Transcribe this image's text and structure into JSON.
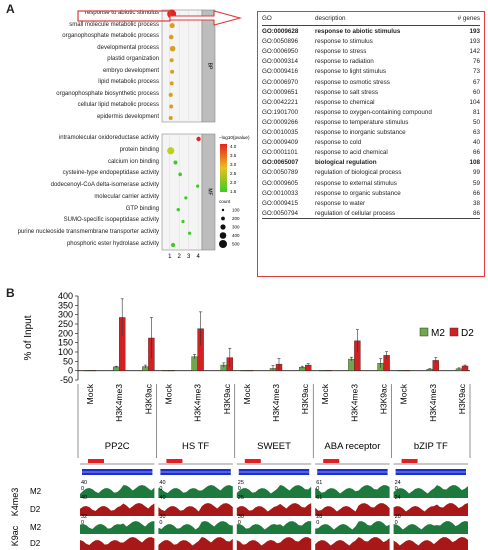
{
  "panel_a_label": "A",
  "panel_b_label": "B",
  "bubble": {
    "bp_terms": [
      "response to abiotic stimulus",
      "small molecule metabolic process",
      "organophosphate metabolic process",
      "developmental process",
      "plastid organization",
      "embryo development",
      "lipid metabolic process",
      "organophosphate biosynthetic process",
      "cellular lipid metabolic process",
      "epidermis development"
    ],
    "mf_terms": [
      "intramolecular oxidoreductase activity",
      "protein binding",
      "calcium ion binding",
      "cysteine-type endopeptidase activity",
      "dodecenoyl-CoA delta-isomerase activity",
      "molecular carrier activity",
      "GTP binding",
      "SUMO-specific isopeptidase activity",
      "purine nucleoside transmembrane transporter activity",
      "phosphoric ester hydrolase activity"
    ],
    "bp_tag": "BP",
    "mf_tag": "MF",
    "x_ticks": [
      "1",
      "2",
      "3",
      "4"
    ],
    "legend_title": "−log10(pvalue)",
    "legend_ticks": [
      "4.0",
      "3.5",
      "3.0",
      "2.5",
      "2.0",
      "1.5"
    ],
    "size_title": "count",
    "size_ticks": [
      "100",
      "200",
      "300",
      "400",
      "500"
    ],
    "colors": {
      "high": "#e8201e",
      "mid": "#e8c020",
      "low": "#3ccc22"
    }
  },
  "go_table": {
    "headers": [
      "GO",
      "description",
      "# genes"
    ],
    "rows": [
      {
        "go": "GO:0009628",
        "desc": "response to abiotic stimulus",
        "n": "193",
        "bold": true
      },
      {
        "go": "GO:0050896",
        "desc": "response to stimulus",
        "n": "193",
        "bold": false
      },
      {
        "go": "GO:0006950",
        "desc": "response to stress",
        "n": "142",
        "bold": false
      },
      {
        "go": "GO:0009314",
        "desc": "response to radiation",
        "n": "76",
        "bold": false
      },
      {
        "go": "GO:0009416",
        "desc": "response to light stimulus",
        "n": "73",
        "bold": false
      },
      {
        "go": "GO:0006970",
        "desc": "response to osmotic stress",
        "n": "67",
        "bold": false
      },
      {
        "go": "GO:0009651",
        "desc": "response to salt stress",
        "n": "60",
        "bold": false
      },
      {
        "go": "GO:0042221",
        "desc": "response to chemical",
        "n": "104",
        "bold": false
      },
      {
        "go": "GO:1901700",
        "desc": "response to oxygen-containing compound",
        "n": "81",
        "bold": false
      },
      {
        "go": "GO:0009266",
        "desc": "response to temperature stimulus",
        "n": "50",
        "bold": false
      },
      {
        "go": "GO:0010035",
        "desc": "response to inorganic substance",
        "n": "63",
        "bold": false
      },
      {
        "go": "GO:0009409",
        "desc": "response to cold",
        "n": "40",
        "bold": false
      },
      {
        "go": "GO:0001101",
        "desc": "response to acid chemical",
        "n": "66",
        "bold": false
      },
      {
        "go": "GO:0065007",
        "desc": "biological regulation",
        "n": "108",
        "bold": true
      },
      {
        "go": "GO:0050789",
        "desc": "regulation of biological process",
        "n": "99",
        "bold": false
      },
      {
        "go": "GO:0009605",
        "desc": "response to external stimulus",
        "n": "59",
        "bold": false
      },
      {
        "go": "GO:0010033",
        "desc": "response to organic substance",
        "n": "66",
        "bold": false
      },
      {
        "go": "GO:0009415",
        "desc": "response to water",
        "n": "38",
        "bold": false
      },
      {
        "go": "GO:0050794",
        "desc": "regulation of cellular process",
        "n": "86",
        "bold": false
      }
    ]
  },
  "chart_data": {
    "type": "bar",
    "ylabel": "% of Input",
    "ylim": [
      -50,
      400
    ],
    "y_ticks": [
      -50,
      0,
      50,
      100,
      150,
      200,
      250,
      300,
      350,
      400
    ],
    "groups": [
      "PP2C",
      "HS TF",
      "SWEET",
      "ABA receptor",
      "bZIP TF"
    ],
    "categories": [
      "Mock",
      "H3K4me3",
      "H3K9ac"
    ],
    "series": [
      {
        "name": "M2",
        "color": "#6fa84a",
        "values": [
          [
            2,
            20,
            22
          ],
          [
            2,
            75,
            30
          ],
          [
            2,
            12,
            18
          ],
          [
            2,
            62,
            40
          ],
          [
            2,
            8,
            10
          ]
        ],
        "errors": [
          [
            0,
            4,
            8
          ],
          [
            0,
            12,
            12
          ],
          [
            0,
            15,
            6
          ],
          [
            0,
            10,
            25
          ],
          [
            0,
            3,
            5
          ]
        ]
      },
      {
        "name": "D2",
        "color": "#d42020",
        "values": [
          [
            2,
            285,
            175
          ],
          [
            2,
            225,
            70
          ],
          [
            2,
            35,
            30
          ],
          [
            2,
            160,
            82
          ],
          [
            2,
            55,
            25
          ]
        ],
        "errors": [
          [
            0,
            100,
            110
          ],
          [
            0,
            90,
            50
          ],
          [
            0,
            30,
            8
          ],
          [
            0,
            60,
            20
          ],
          [
            0,
            15,
            5
          ]
        ]
      }
    ],
    "legend_position": "right"
  },
  "tracks": {
    "row_labels": [
      "M2",
      "D2",
      "M2",
      "D2"
    ],
    "mark_labels": [
      "K4me3",
      "K9ac"
    ],
    "scales": [
      [
        "40",
        "0",
        "40",
        "32",
        "0"
      ],
      [
        "40",
        "0",
        "40",
        "30",
        "0"
      ],
      [
        "25",
        "0",
        "25",
        "30",
        "0"
      ],
      [
        "61",
        "0",
        "61",
        "28",
        "0"
      ],
      [
        "24",
        "0",
        "24",
        "20",
        "0"
      ]
    ],
    "colors": {
      "m2": "#1e7a3c",
      "d2": "#a81818",
      "gene": "#1a2fd0",
      "peak": "#e02020"
    }
  }
}
